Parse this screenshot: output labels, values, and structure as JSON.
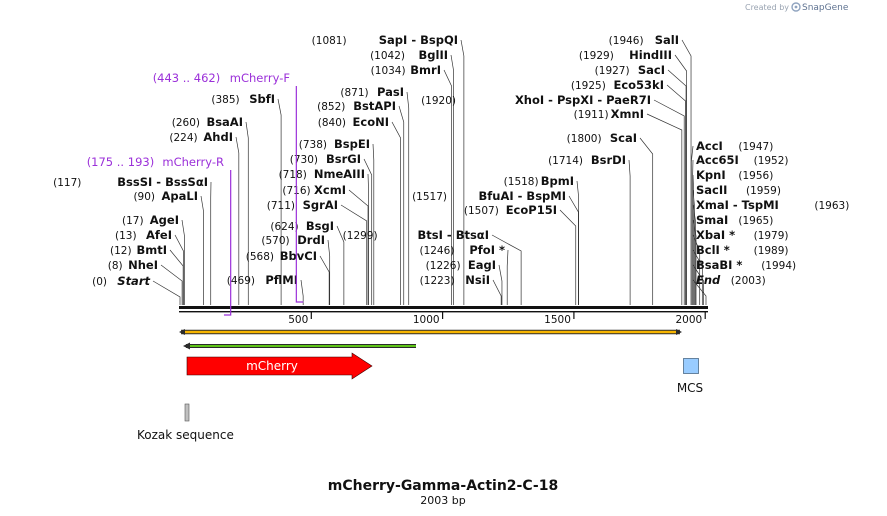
{
  "credit": "Created by",
  "brand": "SnapGene",
  "title": "mCherry-Gamma-Actin2-C-18",
  "length_label": "2003 bp",
  "sequence_length": 2003,
  "ticks": [
    "500",
    "1000",
    "1500",
    "2000"
  ],
  "tick_values": [
    500,
    1000,
    1500,
    2000
  ],
  "colors": {
    "primer": "#9b30d9",
    "mcherry": "#ff0000",
    "mcs": "#99ccff",
    "orange": "#f7b500",
    "green": "#5ec418",
    "kozak": "#c0c0c0"
  },
  "sites": [
    {
      "pos": "(0)",
      "name": "Start",
      "site": 0,
      "italic": true
    },
    {
      "pos": "(8)",
      "name": "NheI",
      "site": 8
    },
    {
      "pos": "(12)",
      "name": "BmtI",
      "site": 12
    },
    {
      "pos": "(13)",
      "name": "AfeI",
      "site": 13
    },
    {
      "pos": "(17)",
      "name": "AgeI",
      "site": 17
    },
    {
      "pos": "(90)",
      "name": "ApaLI",
      "site": 90
    },
    {
      "pos": "(117)",
      "name": "BssSI  -  BssSαI",
      "site": 117
    },
    {
      "pos": "(224)",
      "name": "AhdI",
      "site": 224
    },
    {
      "pos": "(260)",
      "name": "BsaAI",
      "site": 260
    },
    {
      "pos": "(385)",
      "name": "SbfI",
      "site": 385
    },
    {
      "pos": "(469)",
      "name": "PflMI",
      "site": 469
    },
    {
      "pos": "(568)",
      "name": "BbvCI",
      "site": 568
    },
    {
      "pos": "(570)",
      "name": "DrdI",
      "site": 570
    },
    {
      "pos": "(624)",
      "name": "BsgI",
      "site": 624
    },
    {
      "pos": "(711)",
      "name": "SgrAI",
      "site": 711
    },
    {
      "pos": "(716)",
      "name": "XcmI",
      "site": 716
    },
    {
      "pos": "(718)",
      "name": "NmeAIII",
      "site": 718
    },
    {
      "pos": "(730)",
      "name": "BsrGI",
      "site": 730
    },
    {
      "pos": "(738)",
      "name": "BspEI",
      "site": 738
    },
    {
      "pos": "(840)",
      "name": "EcoNI",
      "site": 840
    },
    {
      "pos": "(852)",
      "name": "BstAPI",
      "site": 852
    },
    {
      "pos": "(871)",
      "name": "PasI",
      "site": 871
    },
    {
      "pos": "(1034)",
      "name": "BmrI",
      "site": 1034
    },
    {
      "pos": "(1042)",
      "name": "BglII",
      "site": 1042
    },
    {
      "pos": "(1081)",
      "name": "SapI  -  BspQI",
      "site": 1081
    },
    {
      "pos": "(1223)",
      "name": "NsiI",
      "site": 1223
    },
    {
      "pos": "(1226)",
      "name": "EagI",
      "site": 1226
    },
    {
      "pos": "(1246)",
      "name": "PfoI *",
      "site": 1246
    },
    {
      "pos": "(1299)",
      "name": "BtsI  -  BtsαI",
      "site": 1299
    },
    {
      "pos": "(1507)",
      "name": "EcoP15I",
      "site": 1507
    },
    {
      "pos": "(1517)",
      "name": "BfuAI  -  BspMI",
      "site": 1517
    },
    {
      "pos": "(1518)",
      "name": "BpmI",
      "site": 1518
    },
    {
      "pos": "(1714)",
      "name": "BsrDI",
      "site": 1714
    },
    {
      "pos": "(1800)",
      "name": "ScaI",
      "site": 1800
    },
    {
      "pos": "(1911)",
      "name": "XmnI",
      "site": 1911
    },
    {
      "pos": "(1920)",
      "name": "XhoI  -  PspXI  -  PaeR7I",
      "site": 1920
    },
    {
      "pos": "(1925)",
      "name": "Eco53kI",
      "site": 1925
    },
    {
      "pos": "(1927)",
      "name": "SacI",
      "site": 1927
    },
    {
      "pos": "(1929)",
      "name": "HindIII",
      "site": 1929
    },
    {
      "pos": "(1946)",
      "name": "SalI",
      "site": 1946
    },
    {
      "name": "AccI",
      "pos": "(1947)",
      "site": 1947,
      "right": true
    },
    {
      "name": "Acc65I",
      "pos": "(1952)",
      "site": 1952,
      "right": true
    },
    {
      "name": "KpnI",
      "pos": "(1956)",
      "site": 1956,
      "right": true
    },
    {
      "name": "SacII",
      "pos": "(1959)",
      "site": 1959,
      "right": true
    },
    {
      "name": "XmaI  -  TspMI",
      "pos": "(1963)",
      "site": 1963,
      "right": true
    },
    {
      "name": "SmaI",
      "pos": "(1965)",
      "site": 1965,
      "right": true
    },
    {
      "name": "XbaI *",
      "pos": "(1979)",
      "site": 1979,
      "right": true
    },
    {
      "name": "BclI *",
      "pos": "(1989)",
      "site": 1989,
      "right": true
    },
    {
      "name": "BsaBI *",
      "pos": "(1994)",
      "site": 1994,
      "right": true
    },
    {
      "name": "End",
      "pos": "(2003)",
      "site": 2003,
      "right": true,
      "italic": true
    }
  ],
  "primers": [
    {
      "range": "(443 .. 462)",
      "name": "mCherry-F",
      "start": 443,
      "end": 462,
      "direction": "forward"
    },
    {
      "range": "(175 .. 193)",
      "name": "mCherry-R",
      "start": 175,
      "end": 193,
      "direction": "reverse"
    }
  ],
  "features": [
    {
      "name": "mCherry",
      "start": 0,
      "end": 711,
      "type": "cds",
      "direction": "forward"
    },
    {
      "name": "MCS",
      "start": 1914,
      "end": 1990,
      "type": "misc"
    },
    {
      "name": "Kozak sequence",
      "start": 0,
      "end": 10,
      "type": "kozak"
    }
  ]
}
